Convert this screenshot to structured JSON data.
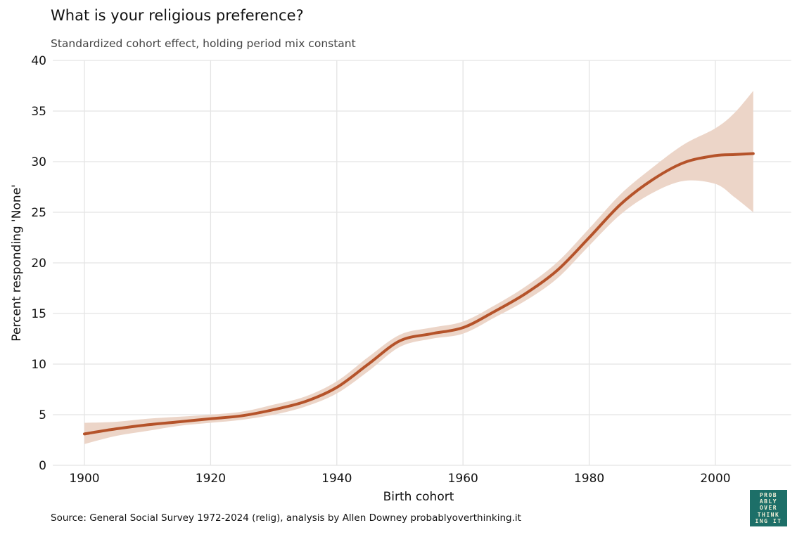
{
  "chart_data": {
    "type": "line",
    "title": "What is your religious preference?",
    "subtitle": "Standardized cohort effect, holding period mix constant",
    "xlabel": "Birth cohort",
    "ylabel": "Percent responding 'None'",
    "xlim": [
      1895,
      2012
    ],
    "ylim": [
      0,
      40
    ],
    "xticks": [
      1900,
      1920,
      1940,
      1960,
      1980,
      2000
    ],
    "yticks": [
      0,
      5,
      10,
      15,
      20,
      25,
      30,
      35,
      40
    ],
    "grid": true,
    "x": [
      1900,
      1905,
      1910,
      1915,
      1920,
      1925,
      1930,
      1935,
      1940,
      1945,
      1950,
      1955,
      1960,
      1965,
      1970,
      1975,
      1980,
      1985,
      1990,
      1995,
      2000,
      2003,
      2006
    ],
    "series": [
      {
        "values": [
          3.1,
          3.6,
          4.0,
          4.3,
          4.6,
          4.9,
          5.5,
          6.3,
          7.7,
          10.0,
          12.3,
          13.0,
          13.6,
          15.2,
          17.0,
          19.3,
          22.5,
          25.8,
          28.2,
          29.9,
          30.6,
          30.7,
          30.8
        ],
        "lower": [
          2.1,
          2.9,
          3.4,
          3.9,
          4.2,
          4.5,
          5.0,
          5.8,
          7.1,
          9.3,
          11.7,
          12.5,
          13.0,
          14.6,
          16.3,
          18.5,
          21.7,
          24.8,
          26.9,
          28.1,
          27.8,
          26.5,
          25.0
        ],
        "upper": [
          4.2,
          4.3,
          4.6,
          4.8,
          5.0,
          5.3,
          6.0,
          6.8,
          8.3,
          10.7,
          12.9,
          13.6,
          14.2,
          15.8,
          17.7,
          20.1,
          23.4,
          26.8,
          29.4,
          31.7,
          33.3,
          34.8,
          37.0
        ],
        "color": "#b5532a",
        "band_color": "#ecd5c8"
      }
    ]
  },
  "source": "Source: General Social Survey 1972-2024 (relig), analysis by Allen Downey probablyoverthinking.it",
  "logo": {
    "text": "PROBABLYOVERTHINKINGIT",
    "background": "#1d6f68"
  }
}
